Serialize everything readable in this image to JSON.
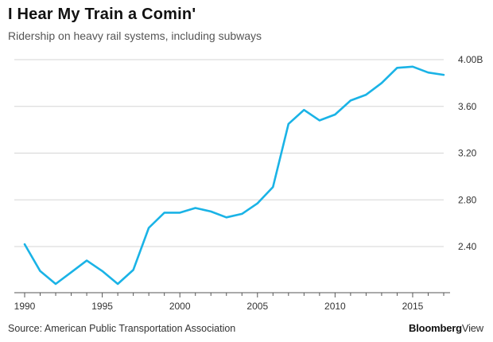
{
  "chart_data": {
    "type": "line",
    "title": "I Hear My Train a Comin'",
    "subtitle": "Ridership on heavy rail systems, including subways",
    "xlabel": "",
    "ylabel": "",
    "xlim": [
      1990,
      2017
    ],
    "ylim": [
      2.07,
      4.0
    ],
    "x_ticks": [
      1990,
      1995,
      2000,
      2005,
      2010,
      2015
    ],
    "x_tick_labels": [
      "1990",
      "1995",
      "2000",
      "2005",
      "2010",
      "2015"
    ],
    "y_ticks": [
      2.4,
      2.8,
      3.2,
      3.6,
      4.0
    ],
    "y_tick_labels": [
      "2.40",
      "2.80",
      "3.20",
      "3.60",
      "4.00B"
    ],
    "grid": "horizontal",
    "legend": "none",
    "series": [
      {
        "color": "#1ab3e6",
        "x": [
          1990,
          1991,
          1992,
          1993,
          1994,
          1995,
          1996,
          1997,
          1998,
          1999,
          2000,
          2001,
          2002,
          2003,
          2004,
          2005,
          2006,
          2007,
          2008,
          2009,
          2010,
          2011,
          2012,
          2013,
          2014,
          2015,
          2016,
          2017
        ],
        "values": [
          2.42,
          2.19,
          2.08,
          2.18,
          2.28,
          2.19,
          2.08,
          2.2,
          2.56,
          2.69,
          2.69,
          2.73,
          2.7,
          2.65,
          2.68,
          2.77,
          2.91,
          3.45,
          3.57,
          3.48,
          3.53,
          3.65,
          3.7,
          3.8,
          3.93,
          3.94,
          3.89,
          3.87
        ]
      }
    ]
  },
  "footer": {
    "source": "Source: American Public Transportation Association",
    "logo_bold": "Bloomberg",
    "logo_light": "View"
  }
}
